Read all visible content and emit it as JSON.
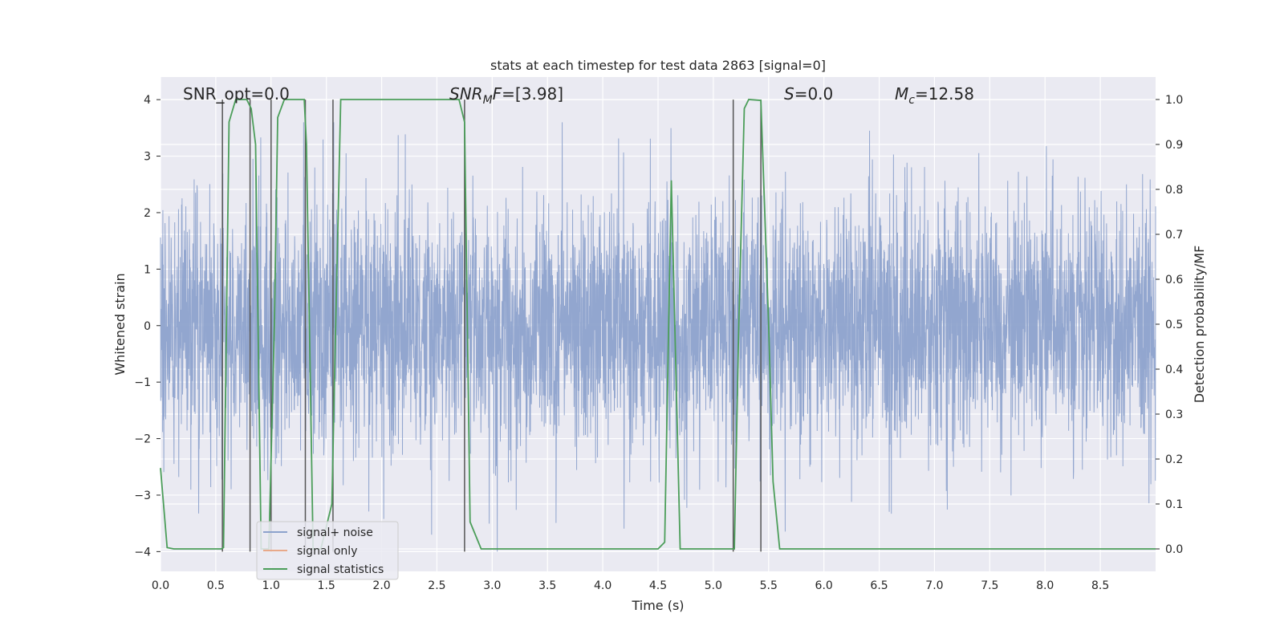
{
  "chart_data": {
    "type": "line",
    "title": "stats at each timestep for test data 2863 [signal=0]",
    "xlabel": "Time (s)",
    "ylabel": "Whitened strain",
    "y2label": "Detection probability/MF",
    "xlim": [
      0.0,
      9.0
    ],
    "ylim": [
      -4.35,
      4.4
    ],
    "y2lim": [
      -0.05,
      1.05
    ],
    "xticks": [
      0.0,
      0.5,
      1.0,
      1.5,
      2.0,
      2.5,
      3.0,
      3.5,
      4.0,
      4.5,
      5.0,
      5.5,
      6.0,
      6.5,
      7.0,
      7.5,
      8.0,
      8.5
    ],
    "xtick_labels": [
      "0.0",
      "0.5",
      "1.0",
      "1.5",
      "2.0",
      "2.5",
      "3.0",
      "3.5",
      "4.0",
      "4.5",
      "5.0",
      "5.5",
      "6.0",
      "6.5",
      "7.0",
      "7.5",
      "8.0",
      "8.5"
    ],
    "yticks": [
      -4,
      -3,
      -2,
      -1,
      0,
      1,
      2,
      3,
      4
    ],
    "ytick_labels": [
      "−4",
      "−3",
      "−2",
      "−1",
      "0",
      "1",
      "2",
      "3",
      "4"
    ],
    "y2ticks": [
      0.0,
      0.1,
      0.2,
      0.3,
      0.4,
      0.5,
      0.6,
      0.7,
      0.8,
      0.9,
      1.0
    ],
    "y2tick_labels": [
      "0.0",
      "0.1",
      "0.2",
      "0.3",
      "0.4",
      "0.5",
      "0.6",
      "0.7",
      "0.8",
      "0.9",
      "1.0"
    ],
    "annotations": {
      "snr_opt": "SNR_opt=0.0",
      "snr_mf_sym": "SNR",
      "snr_mf_sub": "M",
      "snr_mf_f": "F",
      "snr_mf_val": "=[3.98]",
      "s_sym": "S",
      "s_val": "=0.0",
      "mc_sym": "M",
      "mc_sub": "c",
      "mc_val": "=12.58"
    },
    "legend": {
      "location": "lower-left",
      "entries": [
        "signal+ noise",
        "signal only",
        "signal statistics"
      ]
    },
    "series": [
      {
        "name": "signal+ noise",
        "color": "#8da2cc",
        "style": "dense noise, roughly within ±3.5",
        "amplitude_range": [
          -4.0,
          3.6
        ]
      },
      {
        "name": "signal only",
        "color": "#e8a98a",
        "values": []
      },
      {
        "name": "signal statistics",
        "color": "#4c9e5a",
        "axis": "right",
        "x": [
          0.0,
          0.06,
          0.12,
          0.55,
          0.57,
          0.62,
          0.68,
          0.78,
          0.82,
          0.86,
          0.91,
          0.98,
          1.03,
          1.06,
          1.12,
          1.3,
          1.32,
          1.38,
          1.45,
          1.55,
          1.58,
          1.63,
          2.7,
          2.75,
          2.8,
          2.9,
          4.5,
          4.56,
          4.62,
          4.7,
          5.19,
          5.23,
          5.28,
          5.32,
          5.43,
          5.5,
          5.54,
          5.6,
          9.0
        ],
        "values": [
          0.18,
          0.003,
          0.0,
          0.0,
          0.003,
          0.95,
          1.0,
          1.0,
          0.98,
          0.9,
          0.0,
          0.0,
          0.5,
          0.96,
          1.0,
          1.0,
          0.9,
          0.0,
          0.0,
          0.1,
          0.45,
          1.0,
          1.0,
          0.95,
          0.06,
          0.0,
          0.0,
          0.015,
          0.82,
          0.0,
          0.0,
          0.5,
          0.98,
          1.0,
          0.998,
          0.5,
          0.15,
          0.0,
          0.0
        ]
      }
    ],
    "vertical_lines": {
      "color": "#555555",
      "x": [
        0.56,
        0.81,
        1.0,
        1.31,
        1.56,
        2.75,
        5.18,
        5.43
      ],
      "y_from": -4.0,
      "y_to": 4.0
    }
  }
}
